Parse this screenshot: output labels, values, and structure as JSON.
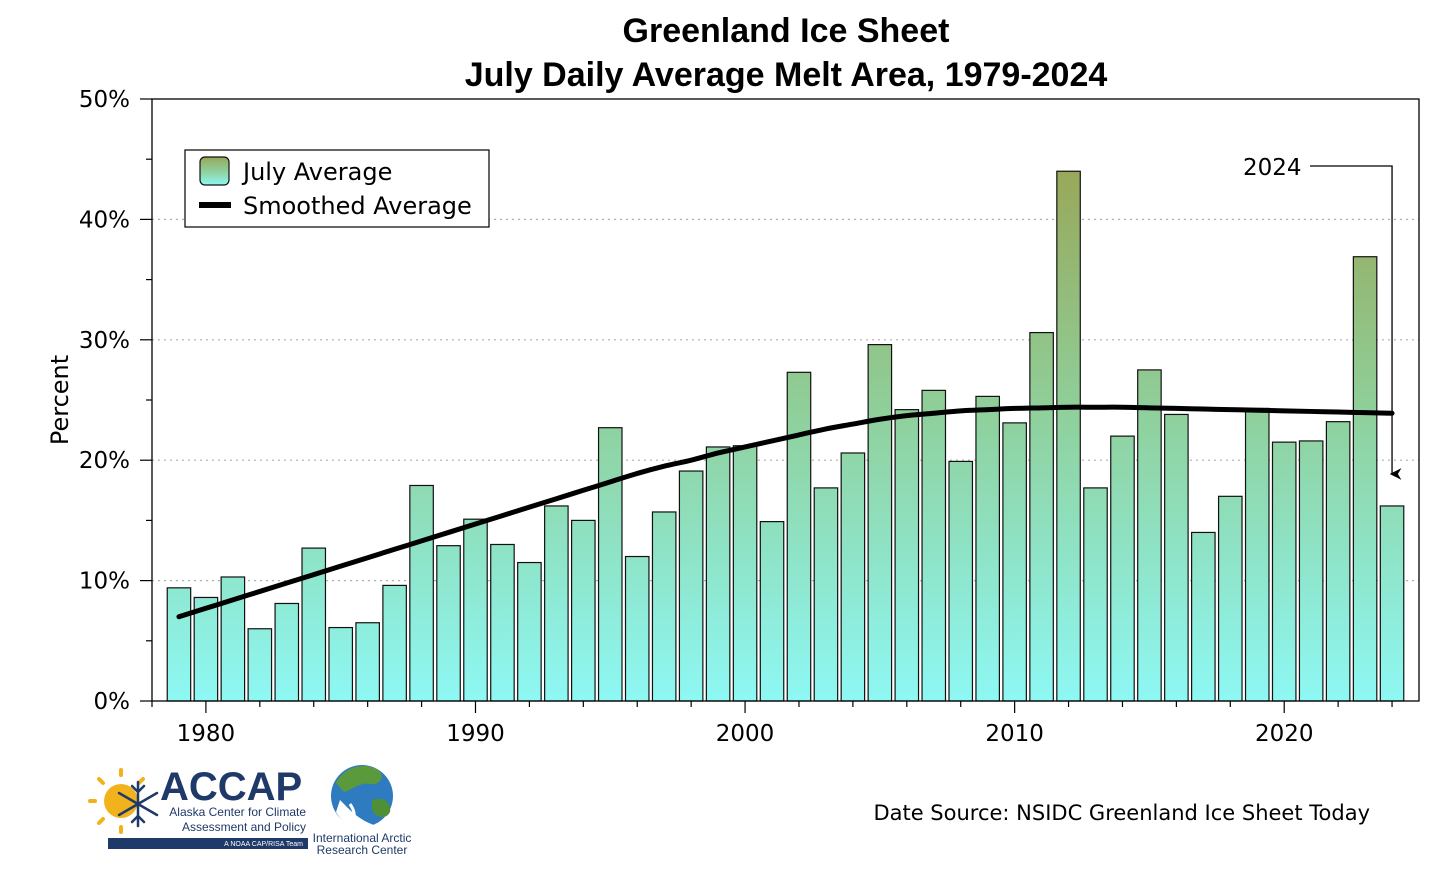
{
  "chart_data": {
    "type": "bar",
    "title": "Greenland Ice Sheet",
    "subtitle": "July Daily Average Melt Area, 1979-2024",
    "xlabel": "",
    "ylabel": "Percent",
    "x": [
      1979,
      1980,
      1981,
      1982,
      1983,
      1984,
      1985,
      1986,
      1987,
      1988,
      1989,
      1990,
      1991,
      1992,
      1993,
      1994,
      1995,
      1996,
      1997,
      1998,
      1999,
      2000,
      2001,
      2002,
      2003,
      2004,
      2005,
      2006,
      2007,
      2008,
      2009,
      2010,
      2011,
      2012,
      2013,
      2014,
      2015,
      2016,
      2017,
      2018,
      2019,
      2020,
      2021,
      2022,
      2023,
      2024
    ],
    "series": [
      {
        "name": "July Average",
        "values": [
          9.4,
          8.6,
          10.3,
          6.0,
          8.1,
          12.7,
          6.1,
          6.5,
          9.6,
          17.9,
          12.9,
          15.1,
          13.0,
          11.5,
          16.2,
          15.0,
          22.7,
          12.0,
          15.7,
          19.1,
          21.1,
          21.2,
          14.9,
          27.3,
          17.7,
          20.6,
          29.6,
          24.2,
          25.8,
          19.9,
          25.3,
          23.1,
          30.6,
          44.0,
          17.7,
          22.0,
          27.5,
          23.8,
          14.0,
          17.0,
          24.3,
          21.5,
          21.6,
          23.2,
          36.9,
          16.2
        ]
      },
      {
        "name": "Smoothed Average",
        "values": [
          7.0,
          7.7,
          8.4,
          9.1,
          9.8,
          10.5,
          11.2,
          11.9,
          12.6,
          13.3,
          14.0,
          14.7,
          15.4,
          16.1,
          16.8,
          17.5,
          18.2,
          18.9,
          19.5,
          20.0,
          20.6,
          21.1,
          21.6,
          22.1,
          22.6,
          23.0,
          23.4,
          23.7,
          23.9,
          24.1,
          24.2,
          24.3,
          24.35,
          24.4,
          24.4,
          24.4,
          24.35,
          24.3,
          24.25,
          24.2,
          24.15,
          24.1,
          24.05,
          24.0,
          23.95,
          23.9
        ]
      }
    ],
    "ylim": [
      0,
      50
    ],
    "xlim": [
      1978,
      2025
    ],
    "y_ticks": [
      0,
      10,
      20,
      30,
      40,
      50
    ],
    "y_tick_labels": [
      "0%",
      "10%",
      "20%",
      "30%",
      "40%",
      "50%"
    ],
    "x_ticks": [
      1980,
      1990,
      2000,
      2010,
      2020
    ],
    "x_tick_labels": [
      "1980",
      "1990",
      "2000",
      "2010",
      "2020"
    ],
    "grid": "horizontal dotted at major ticks",
    "legend_position": "top-left",
    "bar_gradient_colors": {
      "low": "#8ef8f4",
      "mid": "#8fcf9a",
      "high": "#98a85a"
    },
    "line_color": "#000000",
    "annotation": {
      "text": "2024",
      "target_year": 2024
    },
    "source_note": "Date Source: NSIDC Greenland Ice Sheet Today"
  },
  "logos": {
    "accap": {
      "name": "ACCAP",
      "line1": "Alaska Center for Climate",
      "line2": "Assessment and Policy",
      "tagline": "A NOAA CAP/RISA Team",
      "color": "#1f3a68",
      "sun_color": "#f2b21c"
    },
    "iarc": {
      "line1": "International Arctic",
      "line2": "Research Center",
      "color": "#1f3a68"
    }
  }
}
